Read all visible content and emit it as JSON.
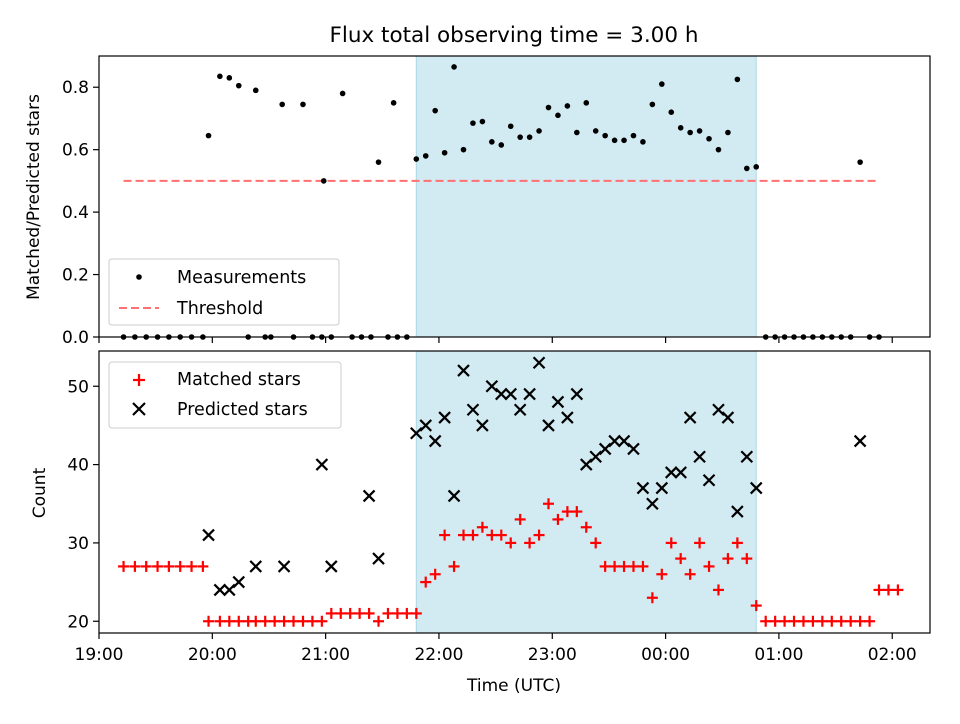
{
  "chart_data": [
    {
      "type": "scatter",
      "title": "Flux total observing time = 3.00 h",
      "xlabel": "",
      "ylabel": "Matched/Predicted stars",
      "x_axis_type": "time",
      "xlim": [
        "19:00",
        "02:20"
      ],
      "ylim": [
        0.0,
        0.9
      ],
      "yticks": [
        0.0,
        0.2,
        0.4,
        0.6,
        0.8
      ],
      "ytick_labels": [
        "0.0",
        "0.2",
        "0.4",
        "0.6",
        "0.8"
      ],
      "shaded_region": {
        "start": "21:48",
        "end": "00:48",
        "color": "#add8e6"
      },
      "legend_position": "lower-left",
      "series": [
        {
          "name": "Measurements",
          "marker": "dot",
          "color": "#000000",
          "points": [
            [
              "19:13",
              0.0
            ],
            [
              "19:19",
              0.0
            ],
            [
              "19:25",
              0.0
            ],
            [
              "19:31",
              0.0
            ],
            [
              "19:37",
              0.0
            ],
            [
              "19:43",
              0.0
            ],
            [
              "19:49",
              0.0
            ],
            [
              "19:55",
              0.0
            ],
            [
              "19:58",
              0.645
            ],
            [
              "20:04",
              0.835
            ],
            [
              "20:09",
              0.83
            ],
            [
              "20:14",
              0.805
            ],
            [
              "20:19",
              0.0
            ],
            [
              "20:23",
              0.79
            ],
            [
              "20:28",
              0.0
            ],
            [
              "20:31",
              0.0
            ],
            [
              "20:37",
              0.745
            ],
            [
              "20:43",
              0.0
            ],
            [
              "20:48",
              0.745
            ],
            [
              "20:53",
              0.0
            ],
            [
              "20:58",
              0.0
            ],
            [
              "20:59",
              0.5
            ],
            [
              "21:03",
              0.0
            ],
            [
              "21:09",
              0.78
            ],
            [
              "21:14",
              0.0
            ],
            [
              "21:19",
              0.0
            ],
            [
              "21:24",
              0.0
            ],
            [
              "21:28",
              0.56
            ],
            [
              "21:33",
              0.0
            ],
            [
              "21:36",
              0.75
            ],
            [
              "21:38",
              0.0
            ],
            [
              "21:43",
              0.0
            ],
            [
              "21:48",
              0.57
            ],
            [
              "21:53",
              0.58
            ],
            [
              "21:58",
              0.725
            ],
            [
              "22:03",
              0.59
            ],
            [
              "22:08",
              0.865
            ],
            [
              "22:13",
              0.6
            ],
            [
              "22:18",
              0.685
            ],
            [
              "22:23",
              0.69
            ],
            [
              "22:28",
              0.625
            ],
            [
              "22:33",
              0.615
            ],
            [
              "22:38",
              0.675
            ],
            [
              "22:43",
              0.64
            ],
            [
              "22:48",
              0.64
            ],
            [
              "22:53",
              0.66
            ],
            [
              "22:58",
              0.735
            ],
            [
              "23:03",
              0.71
            ],
            [
              "23:08",
              0.74
            ],
            [
              "23:13",
              0.655
            ],
            [
              "23:18",
              0.75
            ],
            [
              "23:23",
              0.66
            ],
            [
              "23:28",
              0.645
            ],
            [
              "23:33",
              0.63
            ],
            [
              "23:38",
              0.63
            ],
            [
              "23:43",
              0.645
            ],
            [
              "23:48",
              0.625
            ],
            [
              "23:53",
              0.745
            ],
            [
              "23:58",
              0.81
            ],
            [
              "00:03",
              0.72
            ],
            [
              "00:08",
              0.67
            ],
            [
              "00:13",
              0.655
            ],
            [
              "00:18",
              0.66
            ],
            [
              "00:23",
              0.635
            ],
            [
              "00:28",
              0.6
            ],
            [
              "00:33",
              0.655
            ],
            [
              "00:38",
              0.825
            ],
            [
              "00:43",
              0.54
            ],
            [
              "00:48",
              0.545
            ],
            [
              "00:53",
              0.0
            ],
            [
              "00:58",
              0.0
            ],
            [
              "01:03",
              0.0
            ],
            [
              "01:08",
              0.0
            ],
            [
              "01:13",
              0.0
            ],
            [
              "01:18",
              0.0
            ],
            [
              "01:23",
              0.0
            ],
            [
              "01:28",
              0.0
            ],
            [
              "01:33",
              0.0
            ],
            [
              "01:38",
              0.0
            ],
            [
              "01:43",
              0.56
            ],
            [
              "01:48",
              0.0
            ],
            [
              "01:53",
              0.0
            ]
          ]
        },
        {
          "name": "Threshold",
          "marker": "dashed-line",
          "color": "#ff7070",
          "points": [
            [
              "19:13",
              0.5
            ],
            [
              "01:53",
              0.5
            ]
          ]
        }
      ]
    },
    {
      "type": "scatter",
      "title": "",
      "xlabel": "Time (UTC)",
      "ylabel": "Count",
      "x_axis_type": "time",
      "xlim": [
        "19:00",
        "02:20"
      ],
      "xticks": [
        "19:00",
        "20:00",
        "21:00",
        "22:00",
        "23:00",
        "00:00",
        "01:00",
        "02:00"
      ],
      "ylim": [
        18.5,
        54.5
      ],
      "yticks": [
        20,
        30,
        40,
        50
      ],
      "shaded_region": {
        "start": "21:48",
        "end": "00:48",
        "color": "#add8e6"
      },
      "legend_position": "upper-left",
      "series": [
        {
          "name": "Matched stars",
          "marker": "plus",
          "color": "#ff0000",
          "points": [
            [
              "19:13",
              27
            ],
            [
              "19:19",
              27
            ],
            [
              "19:25",
              27
            ],
            [
              "19:31",
              27
            ],
            [
              "19:37",
              27
            ],
            [
              "19:43",
              27
            ],
            [
              "19:49",
              27
            ],
            [
              "19:55",
              27
            ],
            [
              "19:58",
              20
            ],
            [
              "20:04",
              20
            ],
            [
              "20:09",
              20
            ],
            [
              "20:14",
              20
            ],
            [
              "20:19",
              20
            ],
            [
              "20:23",
              20
            ],
            [
              "20:28",
              20
            ],
            [
              "20:33",
              20
            ],
            [
              "20:38",
              20
            ],
            [
              "20:43",
              20
            ],
            [
              "20:48",
              20
            ],
            [
              "20:53",
              20
            ],
            [
              "20:58",
              20
            ],
            [
              "21:03",
              21
            ],
            [
              "21:08",
              21
            ],
            [
              "21:13",
              21
            ],
            [
              "21:18",
              21
            ],
            [
              "21:23",
              21
            ],
            [
              "21:28",
              20
            ],
            [
              "21:33",
              21
            ],
            [
              "21:38",
              21
            ],
            [
              "21:43",
              21
            ],
            [
              "21:48",
              21
            ],
            [
              "21:53",
              25
            ],
            [
              "21:58",
              26
            ],
            [
              "22:03",
              31
            ],
            [
              "22:08",
              27
            ],
            [
              "22:13",
              31
            ],
            [
              "22:18",
              31
            ],
            [
              "22:23",
              32
            ],
            [
              "22:28",
              31
            ],
            [
              "22:33",
              31
            ],
            [
              "22:38",
              30
            ],
            [
              "22:43",
              33
            ],
            [
              "22:48",
              30
            ],
            [
              "22:53",
              31
            ],
            [
              "22:58",
              35
            ],
            [
              "23:03",
              33
            ],
            [
              "23:08",
              34
            ],
            [
              "23:13",
              34
            ],
            [
              "23:18",
              32
            ],
            [
              "23:23",
              30
            ],
            [
              "23:28",
              27
            ],
            [
              "23:33",
              27
            ],
            [
              "23:38",
              27
            ],
            [
              "23:43",
              27
            ],
            [
              "23:48",
              27
            ],
            [
              "23:53",
              23
            ],
            [
              "23:58",
              26
            ],
            [
              "00:03",
              30
            ],
            [
              "00:08",
              28
            ],
            [
              "00:13",
              26
            ],
            [
              "00:18",
              30
            ],
            [
              "00:23",
              27
            ],
            [
              "00:28",
              24
            ],
            [
              "00:33",
              28
            ],
            [
              "00:38",
              30
            ],
            [
              "00:43",
              28
            ],
            [
              "00:48",
              22
            ],
            [
              "00:53",
              20
            ],
            [
              "00:58",
              20
            ],
            [
              "01:03",
              20
            ],
            [
              "01:08",
              20
            ],
            [
              "01:13",
              20
            ],
            [
              "01:18",
              20
            ],
            [
              "01:23",
              20
            ],
            [
              "01:28",
              20
            ],
            [
              "01:33",
              20
            ],
            [
              "01:38",
              20
            ],
            [
              "01:43",
              20
            ],
            [
              "01:48",
              20
            ],
            [
              "01:53",
              24
            ],
            [
              "01:58",
              24
            ],
            [
              "02:03",
              24
            ]
          ]
        },
        {
          "name": "Predicted stars",
          "marker": "x",
          "color": "#000000",
          "points": [
            [
              "19:58",
              31
            ],
            [
              "20:04",
              24
            ],
            [
              "20:09",
              24
            ],
            [
              "20:14",
              25
            ],
            [
              "20:23",
              27
            ],
            [
              "20:38",
              27
            ],
            [
              "20:58",
              40
            ],
            [
              "21:03",
              27
            ],
            [
              "21:23",
              36
            ],
            [
              "21:28",
              28
            ],
            [
              "21:48",
              44
            ],
            [
              "21:53",
              45
            ],
            [
              "21:58",
              43
            ],
            [
              "22:03",
              46
            ],
            [
              "22:08",
              36
            ],
            [
              "22:13",
              52
            ],
            [
              "22:18",
              47
            ],
            [
              "22:23",
              45
            ],
            [
              "22:28",
              50
            ],
            [
              "22:33",
              49
            ],
            [
              "22:38",
              49
            ],
            [
              "22:43",
              47
            ],
            [
              "22:48",
              49
            ],
            [
              "22:53",
              53
            ],
            [
              "22:58",
              45
            ],
            [
              "23:03",
              48
            ],
            [
              "23:08",
              46
            ],
            [
              "23:13",
              49
            ],
            [
              "23:18",
              40
            ],
            [
              "23:23",
              41
            ],
            [
              "23:28",
              42
            ],
            [
              "23:33",
              43
            ],
            [
              "23:38",
              43
            ],
            [
              "23:43",
              42
            ],
            [
              "23:48",
              37
            ],
            [
              "23:53",
              35
            ],
            [
              "23:58",
              37
            ],
            [
              "00:03",
              39
            ],
            [
              "00:08",
              39
            ],
            [
              "00:13",
              46
            ],
            [
              "00:18",
              41
            ],
            [
              "00:23",
              38
            ],
            [
              "00:28",
              47
            ],
            [
              "00:33",
              46
            ],
            [
              "00:38",
              34
            ],
            [
              "00:43",
              41
            ],
            [
              "00:48",
              37
            ],
            [
              "01:43",
              43
            ]
          ]
        }
      ]
    }
  ]
}
